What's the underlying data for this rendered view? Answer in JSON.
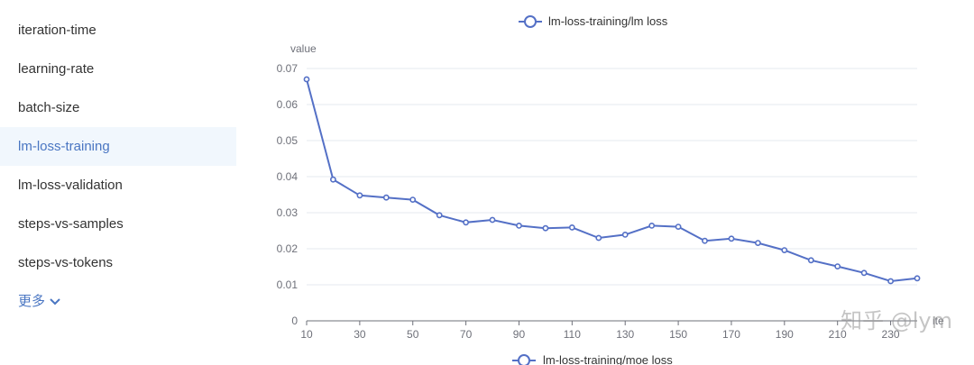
{
  "sidebar": {
    "items": [
      {
        "label": "iteration-time",
        "active": false
      },
      {
        "label": "learning-rate",
        "active": false
      },
      {
        "label": "batch-size",
        "active": false
      },
      {
        "label": "lm-loss-training",
        "active": true
      },
      {
        "label": "lm-loss-validation",
        "active": false
      },
      {
        "label": "steps-vs-samples",
        "active": false
      },
      {
        "label": "steps-vs-tokens",
        "active": false
      }
    ],
    "more_label": "更多",
    "more_icon": "chevron-down-icon"
  },
  "colors": {
    "series": "#5470c6",
    "accent": "#4a76c2",
    "active_bg": "#f1f7fd",
    "grid": "#e6e9ef",
    "axis_text": "#6e7079"
  },
  "watermark": "知乎 @lym",
  "chart_data": [
    {
      "type": "line",
      "legend": "lm-loss-training/lm loss",
      "ylabel": "value",
      "xlabel": "",
      "ylim": [
        0,
        0.07
      ],
      "yticks": [
        0,
        0.01,
        0.02,
        0.03,
        0.04,
        0.05,
        0.06,
        0.07
      ],
      "xticks": [
        10,
        30,
        50,
        70,
        90,
        110,
        130,
        150,
        170,
        190,
        210,
        230
      ],
      "xticks_extra": "ite",
      "grid": true,
      "legend_position": "top-center",
      "series": [
        {
          "name": "lm-loss-training/lm loss",
          "x": [
            10,
            20,
            30,
            40,
            50,
            60,
            70,
            80,
            90,
            100,
            110,
            120,
            130,
            140,
            150,
            160,
            170,
            180,
            190,
            200,
            210,
            220,
            230,
            240
          ],
          "values": [
            0.067,
            0.0392,
            0.0348,
            0.0342,
            0.0336,
            0.0293,
            0.0273,
            0.028,
            0.0264,
            0.0257,
            0.0259,
            0.023,
            0.0239,
            0.0264,
            0.0261,
            0.0222,
            0.0228,
            0.0216,
            0.0196,
            0.0168,
            0.0151,
            0.0133,
            0.011,
            0.0118
          ]
        }
      ]
    },
    {
      "type": "line",
      "legend": "lm-loss-training/moe loss",
      "legend_position": "top-center",
      "series": [
        {
          "name": "lm-loss-training/moe loss",
          "x": [],
          "values": []
        }
      ]
    }
  ]
}
